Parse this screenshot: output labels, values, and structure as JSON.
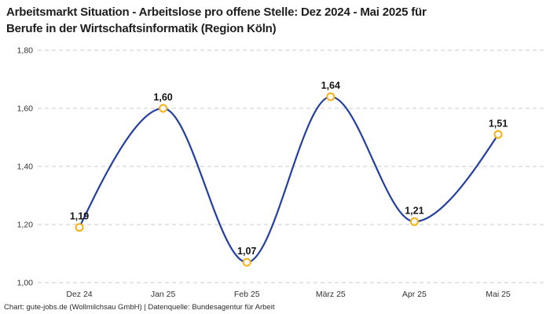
{
  "header": {
    "title_lines": [
      "Arbeitsmarkt Situation - Arbeitslose pro offene Stelle: Dez 2024 - Mai 2025 für",
      "Berufe in der Wirtschaftsinformatik (Region Köln)"
    ]
  },
  "footer": {
    "credit": "Chart: gute-jobs.de (Wollmilchsau GmbH) | Datenquelle: Bundesagentur für Arbeit"
  },
  "chart_data": {
    "type": "line",
    "title": "Arbeitsmarkt Situation - Arbeitslose pro offene Stelle: Dez 2024 - Mai 2025 für Berufe in der Wirtschaftsinformatik (Region Köln)",
    "categories": [
      "Dez 24",
      "Jan 25",
      "Feb 25",
      "März 25",
      "Apr 25",
      "Mai 25"
    ],
    "values": [
      1.19,
      1.6,
      1.07,
      1.64,
      1.21,
      1.51
    ],
    "value_labels": [
      "1,19",
      "1,60",
      "1,07",
      "1,64",
      "1,21",
      "1,51"
    ],
    "xlabel": "",
    "ylabel": "",
    "ylim": [
      1.0,
      1.8
    ],
    "yticks": [
      1.0,
      1.2,
      1.4,
      1.6,
      1.8
    ],
    "ytick_labels": [
      "1,00",
      "1,20",
      "1,40",
      "1,60",
      "1,80"
    ],
    "grid": "horizontal-dashed",
    "legend": "none",
    "colors": {
      "line": "#233f9f",
      "marker_stroke": "#f9b016",
      "marker_fill": "#ffffff",
      "gridline": "#cbcbcb",
      "tick_text": "#333333",
      "label_text": "#141414"
    }
  }
}
